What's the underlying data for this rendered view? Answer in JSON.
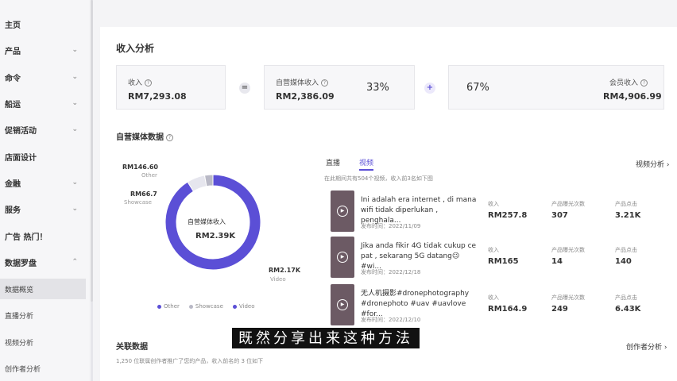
{
  "sidebar": {
    "items": [
      {
        "label": "主页",
        "chevron": false
      },
      {
        "label": "产品",
        "chevron": true
      },
      {
        "label": "命令",
        "chevron": true
      },
      {
        "label": "船运",
        "chevron": true
      },
      {
        "label": "促销活动",
        "chevron": true
      },
      {
        "label": "店面设计",
        "chevron": false
      },
      {
        "label": "金融",
        "chevron": true
      },
      {
        "label": "服务",
        "chevron": true
      },
      {
        "label": "广告 热门！",
        "chevron": false
      },
      {
        "label": "数据罗盘",
        "chevron": true,
        "expanded": true
      }
    ],
    "subitems": [
      {
        "label": "数据概览",
        "active": true
      },
      {
        "label": "直播分析"
      },
      {
        "label": "视频分析"
      },
      {
        "label": "创作者分析"
      }
    ]
  },
  "income": {
    "title": "收入分析",
    "total": {
      "label": "收入",
      "value": "RM7,293.08"
    },
    "equals": "=",
    "media": {
      "label": "自营媒体收入",
      "value": "RM2,386.09",
      "pct": "33%"
    },
    "plus": "+",
    "member": {
      "label": "会员收入",
      "value": "RM4,906.99",
      "pct": "67%"
    }
  },
  "media_data": {
    "title": "自营媒体数据",
    "center_label": "自营媒体收入",
    "center_value": "RM2.39K",
    "slices": [
      {
        "name": "Other",
        "value": "RM146.60",
        "color": "#e6e6ee"
      },
      {
        "name": "Showcase",
        "value": "RM66.7",
        "color": "#b9b9c6"
      },
      {
        "name": "Video",
        "value": "RM2.17K",
        "color": "#5b4fd6"
      }
    ],
    "chart_data": {
      "type": "pie",
      "categories": [
        "Other",
        "Showcase",
        "Video"
      ],
      "values": [
        146.6,
        66.7,
        2170
      ]
    }
  },
  "tabs": [
    {
      "label": "直播"
    },
    {
      "label": "视频",
      "active": true
    }
  ],
  "video_hint": "在此期间共有504个视频，收入前3名如下图",
  "video_link": "视频分析",
  "videos": [
    {
      "title": "Ini adalah era internet , di mana wifi tidak diperlukan , penghala...",
      "date": "发布时间：2022/11/09",
      "metrics": [
        {
          "label": "收入",
          "value": "RM257.8"
        },
        {
          "label": "产品曝光次数",
          "value": "307"
        },
        {
          "label": "产品点击",
          "value": "3.21K"
        }
      ]
    },
    {
      "title": "Jika anda fikir 4G tidak cukup ce pat , sekarang 5G datang😉#wi...",
      "date": "发布时间：2022/12/18",
      "metrics": [
        {
          "label": "收入",
          "value": "RM165"
        },
        {
          "label": "产品曝光次数",
          "value": "14"
        },
        {
          "label": "产品点击",
          "value": "140"
        }
      ]
    },
    {
      "title": "无人机摄影#dronephotography #dronephoto #uav #uavlove #for...",
      "date": "发布时间：2022/12/10",
      "metrics": [
        {
          "label": "收入",
          "value": "RM164.9"
        },
        {
          "label": "产品曝光次数",
          "value": "249"
        },
        {
          "label": "产品点击",
          "value": "6.43K"
        }
      ]
    }
  ],
  "assoc": {
    "title": "关联数据",
    "hint": "1,250 位联属创作者推广了您的产品，收入前名的 3 位如下",
    "link": "创作者分析"
  },
  "subtitle": "既然分享出来这种方法"
}
